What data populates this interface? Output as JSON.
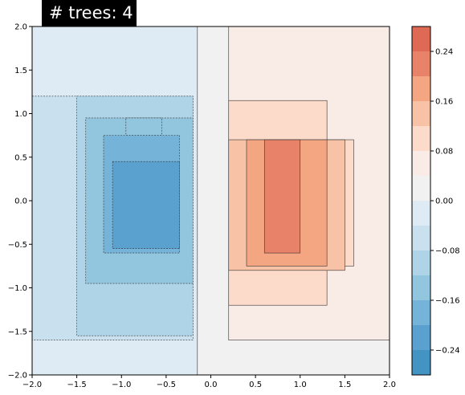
{
  "chart_data": {
    "type": "heatmap",
    "subtype": "filled-contour",
    "title": "# trees: 4",
    "xlabel": "",
    "ylabel": "",
    "xlim": [
      -2.0,
      2.0
    ],
    "ylim": [
      -2.0,
      2.0
    ],
    "grid": false,
    "x_ticks": [
      "−2.0",
      "−1.5",
      "−1.0",
      "−0.5",
      "0.0",
      "0.5",
      "1.0",
      "1.5",
      "2.0"
    ],
    "y_ticks": [
      "−2.0",
      "−1.5",
      "−1.0",
      "−0.5",
      "0.0",
      "0.5",
      "1.0",
      "1.5",
      "2.0"
    ],
    "colorbar": {
      "placement": "right",
      "range": [
        -0.28,
        0.28
      ],
      "levels": [
        -0.28,
        -0.24,
        -0.2,
        -0.16,
        -0.12,
        -0.08,
        -0.04,
        0.0,
        0.04,
        0.08,
        0.12,
        0.16,
        0.2,
        0.24,
        0.28
      ],
      "colors": [
        "#4393c3",
        "#5ba1cf",
        "#75b4d8",
        "#92c5de",
        "#afd4e7",
        "#c9e0ee",
        "#deebf4",
        "#f1f1f1",
        "#f9ebe5",
        "#fcdbcb",
        "#f8c2a6",
        "#f4a582",
        "#e8836a",
        "#de6a55"
      ],
      "tick_values": [
        -0.24,
        -0.16,
        -0.08,
        0.0,
        0.08,
        0.16,
        0.24
      ],
      "tick_labels": [
        "−0.24",
        "−0.16",
        "−0.08",
        "0.00",
        "0.08",
        "0.16",
        "0.24"
      ]
    },
    "regions": [
      {
        "level": -0.04,
        "x": [
          -2.0,
          -0.15
        ],
        "y": [
          -2.0,
          2.0
        ]
      },
      {
        "level": -0.08,
        "x": [
          -2.0,
          -0.2
        ],
        "y": [
          -1.6,
          1.2
        ]
      },
      {
        "level": -0.12,
        "x": [
          -1.5,
          -0.2
        ],
        "y": [
          -1.55,
          1.2
        ]
      },
      {
        "level": -0.16,
        "x": [
          -1.4,
          -0.2
        ],
        "y": [
          -0.95,
          0.95
        ]
      },
      {
        "level": -0.16,
        "x": [
          -0.95,
          -0.55
        ],
        "y": [
          0.75,
          0.95
        ]
      },
      {
        "level": -0.2,
        "x": [
          -1.2,
          -0.35
        ],
        "y": [
          -0.6,
          0.75
        ]
      },
      {
        "level": -0.24,
        "x": [
          -1.1,
          -0.35
        ],
        "y": [
          -0.55,
          0.45
        ]
      },
      {
        "level": 0.04,
        "x": [
          -0.15,
          2.0
        ],
        "y": [
          -2.0,
          2.0
        ]
      },
      {
        "level": 0.08,
        "x": [
          0.2,
          2.0
        ],
        "y": [
          -1.6,
          2.0
        ]
      },
      {
        "level": 0.12,
        "x": [
          0.2,
          1.3
        ],
        "y": [
          -1.2,
          1.15
        ]
      },
      {
        "level": 0.12,
        "x": [
          1.3,
          1.6
        ],
        "y": [
          -0.75,
          0.7
        ]
      },
      {
        "level": 0.16,
        "x": [
          0.2,
          1.5
        ],
        "y": [
          -0.8,
          0.7
        ]
      },
      {
        "level": 0.2,
        "x": [
          0.4,
          1.3
        ],
        "y": [
          -0.75,
          0.7
        ]
      },
      {
        "level": 0.24,
        "x": [
          0.6,
          1.0
        ],
        "y": [
          -0.6,
          0.7
        ]
      }
    ]
  }
}
